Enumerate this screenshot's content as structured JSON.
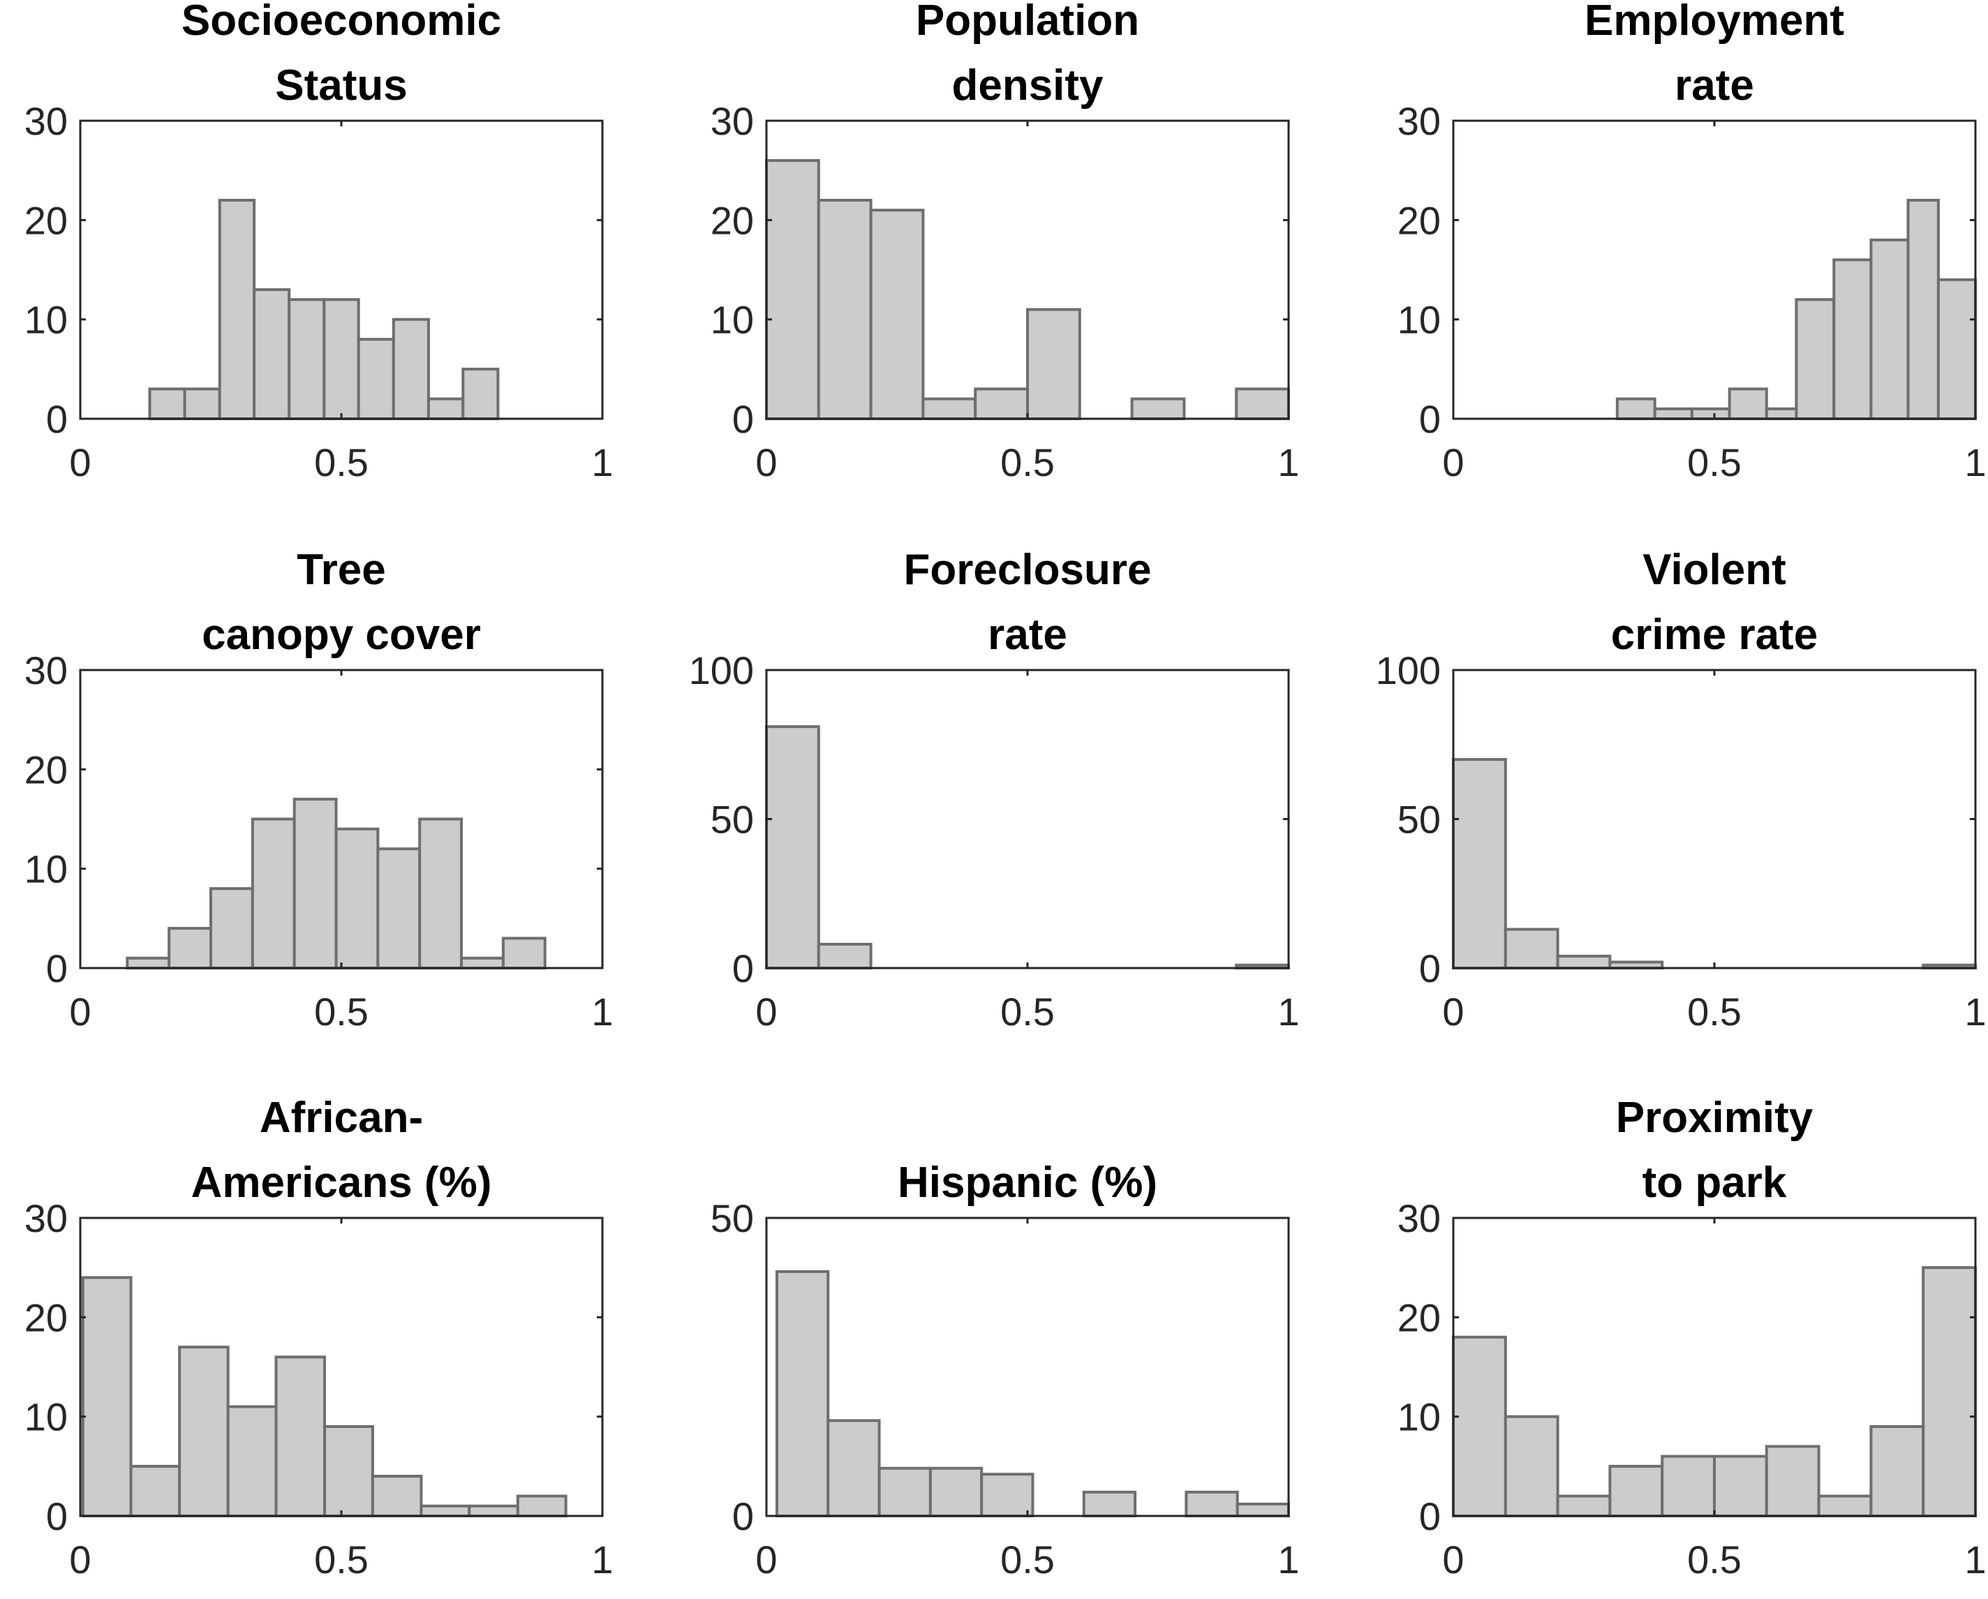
{
  "chart_data": [
    {
      "type": "bar",
      "title_lines": [
        "Socioeconomic",
        "Status"
      ],
      "xlim": [
        0,
        1
      ],
      "ylim": [
        0,
        30
      ],
      "xticks": [
        0,
        0.5,
        1
      ],
      "xtick_labels": [
        "0",
        "0.5",
        "1"
      ],
      "yticks": [
        0,
        10,
        20,
        30
      ],
      "ytick_labels": [
        "0",
        "10",
        "20",
        "30"
      ],
      "bins": [
        [
          0.133,
          0.2,
          3
        ],
        [
          0.2,
          0.267,
          3
        ],
        [
          0.267,
          0.333,
          22
        ],
        [
          0.333,
          0.4,
          13
        ],
        [
          0.4,
          0.467,
          12
        ],
        [
          0.467,
          0.533,
          12
        ],
        [
          0.533,
          0.6,
          8
        ],
        [
          0.6,
          0.667,
          10
        ],
        [
          0.667,
          0.733,
          2
        ],
        [
          0.733,
          0.8,
          5
        ]
      ]
    },
    {
      "type": "bar",
      "title_lines": [
        "Population",
        "density"
      ],
      "xlim": [
        0,
        1
      ],
      "ylim": [
        0,
        30
      ],
      "xticks": [
        0,
        0.5,
        1
      ],
      "xtick_labels": [
        "0",
        "0.5",
        "1"
      ],
      "yticks": [
        0,
        10,
        20,
        30
      ],
      "ytick_labels": [
        "0",
        "10",
        "20",
        "30"
      ],
      "bins": [
        [
          0,
          0.1,
          26
        ],
        [
          0.1,
          0.2,
          22
        ],
        [
          0.2,
          0.3,
          21
        ],
        [
          0.3,
          0.4,
          2
        ],
        [
          0.4,
          0.5,
          3
        ],
        [
          0.5,
          0.6,
          11
        ],
        [
          0.6,
          0.7,
          0
        ],
        [
          0.7,
          0.8,
          2
        ],
        [
          0.8,
          0.9,
          0
        ],
        [
          0.9,
          1.0,
          3
        ]
      ]
    },
    {
      "type": "bar",
      "title_lines": [
        "Employment",
        "rate"
      ],
      "xlim": [
        0,
        1
      ],
      "ylim": [
        0,
        30
      ],
      "xticks": [
        0,
        0.5,
        1
      ],
      "xtick_labels": [
        "0",
        "0.5",
        "1"
      ],
      "yticks": [
        0,
        10,
        20,
        30
      ],
      "ytick_labels": [
        "0",
        "10",
        "20",
        "30"
      ],
      "bins": [
        [
          0.314,
          0.386,
          2
        ],
        [
          0.386,
          0.457,
          1
        ],
        [
          0.457,
          0.529,
          1
        ],
        [
          0.529,
          0.6,
          3
        ],
        [
          0.6,
          0.657,
          1
        ],
        [
          0.657,
          0.729,
          12
        ],
        [
          0.729,
          0.8,
          16
        ],
        [
          0.8,
          0.871,
          18
        ],
        [
          0.871,
          0.929,
          22
        ],
        [
          0.929,
          1.0,
          14
        ]
      ]
    },
    {
      "type": "bar",
      "title_lines": [
        "Tree",
        "canopy cover"
      ],
      "xlim": [
        0,
        1
      ],
      "ylim": [
        0,
        30
      ],
      "xticks": [
        0,
        0.5,
        1
      ],
      "xtick_labels": [
        "0",
        "0.5",
        "1"
      ],
      "yticks": [
        0,
        10,
        20,
        30
      ],
      "ytick_labels": [
        "0",
        "10",
        "20",
        "30"
      ],
      "bins": [
        [
          0.09,
          0.17,
          1
        ],
        [
          0.17,
          0.25,
          4
        ],
        [
          0.25,
          0.33,
          8
        ],
        [
          0.33,
          0.41,
          15
        ],
        [
          0.41,
          0.49,
          17
        ],
        [
          0.49,
          0.57,
          14
        ],
        [
          0.57,
          0.65,
          12
        ],
        [
          0.65,
          0.73,
          15
        ],
        [
          0.73,
          0.81,
          1
        ],
        [
          0.81,
          0.89,
          3
        ]
      ]
    },
    {
      "type": "bar",
      "title_lines": [
        "Foreclosure",
        "rate"
      ],
      "xlim": [
        0,
        1
      ],
      "ylim": [
        0,
        100
      ],
      "xticks": [
        0,
        0.5,
        1
      ],
      "xtick_labels": [
        "0",
        "0.5",
        "1"
      ],
      "yticks": [
        0,
        50,
        100
      ],
      "ytick_labels": [
        "0",
        "50",
        "100"
      ],
      "bins": [
        [
          0,
          0.1,
          81
        ],
        [
          0.1,
          0.2,
          8
        ],
        [
          0.2,
          0.3,
          0
        ],
        [
          0.3,
          0.4,
          0
        ],
        [
          0.4,
          0.5,
          0
        ],
        [
          0.5,
          0.6,
          0
        ],
        [
          0.6,
          0.7,
          0
        ],
        [
          0.7,
          0.8,
          0
        ],
        [
          0.8,
          0.9,
          0
        ],
        [
          0.9,
          1.0,
          1
        ]
      ]
    },
    {
      "type": "bar",
      "title_lines": [
        "Violent",
        "crime rate"
      ],
      "xlim": [
        0,
        1
      ],
      "ylim": [
        0,
        100
      ],
      "xticks": [
        0,
        0.5,
        1
      ],
      "xtick_labels": [
        "0",
        "0.5",
        "1"
      ],
      "yticks": [
        0,
        50,
        100
      ],
      "ytick_labels": [
        "0",
        "50",
        "100"
      ],
      "bins": [
        [
          0,
          0.1,
          70
        ],
        [
          0.1,
          0.2,
          13
        ],
        [
          0.2,
          0.3,
          4
        ],
        [
          0.3,
          0.4,
          2
        ],
        [
          0.4,
          0.5,
          0
        ],
        [
          0.5,
          0.6,
          0
        ],
        [
          0.6,
          0.7,
          0
        ],
        [
          0.7,
          0.8,
          0
        ],
        [
          0.8,
          0.9,
          0
        ],
        [
          0.9,
          1.0,
          1
        ]
      ]
    },
    {
      "type": "bar",
      "title_lines": [
        "African-",
        "Americans (%)"
      ],
      "xlim": [
        0,
        1
      ],
      "ylim": [
        0,
        30
      ],
      "xticks": [
        0,
        0.5,
        1
      ],
      "xtick_labels": [
        "0",
        "0.5",
        "1"
      ],
      "yticks": [
        0,
        10,
        20,
        30
      ],
      "ytick_labels": [
        "0",
        "10",
        "20",
        "30"
      ],
      "bins": [
        [
          0.005,
          0.097,
          24
        ],
        [
          0.097,
          0.19,
          5
        ],
        [
          0.19,
          0.283,
          17
        ],
        [
          0.283,
          0.375,
          11
        ],
        [
          0.375,
          0.468,
          16
        ],
        [
          0.468,
          0.56,
          9
        ],
        [
          0.56,
          0.653,
          4
        ],
        [
          0.653,
          0.745,
          1
        ],
        [
          0.745,
          0.838,
          1
        ],
        [
          0.838,
          0.93,
          2
        ]
      ]
    },
    {
      "type": "bar",
      "title_lines": [
        "Hispanic (%)"
      ],
      "xlim": [
        0,
        1
      ],
      "ylim": [
        0,
        50
      ],
      "xticks": [
        0,
        0.5,
        1
      ],
      "xtick_labels": [
        "0",
        "0.5",
        "1"
      ],
      "yticks": [
        0,
        50
      ],
      "ytick_labels": [
        "0",
        "50"
      ],
      "bins": [
        [
          0.02,
          0.118,
          41
        ],
        [
          0.118,
          0.216,
          16
        ],
        [
          0.216,
          0.314,
          8
        ],
        [
          0.314,
          0.412,
          8
        ],
        [
          0.412,
          0.51,
          7
        ],
        [
          0.51,
          0.608,
          0
        ],
        [
          0.608,
          0.706,
          4
        ],
        [
          0.706,
          0.804,
          0
        ],
        [
          0.804,
          0.902,
          4
        ],
        [
          0.902,
          1.0,
          2
        ]
      ]
    },
    {
      "type": "bar",
      "title_lines": [
        "Proximity",
        "to park"
      ],
      "xlim": [
        0,
        1
      ],
      "ylim": [
        0,
        30
      ],
      "xticks": [
        0,
        0.5,
        1
      ],
      "xtick_labels": [
        "0",
        "0.5",
        "1"
      ],
      "yticks": [
        0,
        10,
        20,
        30
      ],
      "ytick_labels": [
        "0",
        "10",
        "20",
        "30"
      ],
      "bins": [
        [
          0,
          0.1,
          18
        ],
        [
          0.1,
          0.2,
          10
        ],
        [
          0.2,
          0.3,
          2
        ],
        [
          0.3,
          0.4,
          5
        ],
        [
          0.4,
          0.5,
          6
        ],
        [
          0.5,
          0.6,
          6
        ],
        [
          0.6,
          0.7,
          7
        ],
        [
          0.7,
          0.8,
          2
        ],
        [
          0.8,
          0.9,
          9
        ],
        [
          0.9,
          1.0,
          25
        ]
      ]
    }
  ]
}
